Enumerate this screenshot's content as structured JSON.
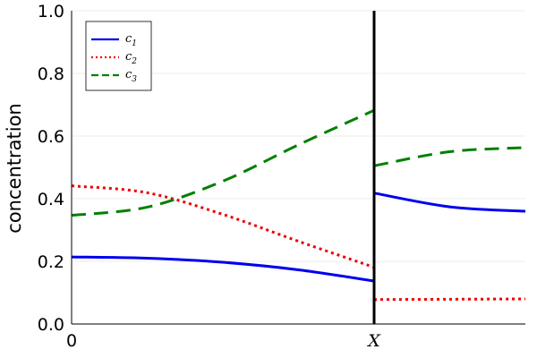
{
  "chart_data": {
    "type": "line",
    "title": "",
    "xlabel": "",
    "ylabel": "concentration",
    "xlim": [
      0,
      1.5
    ],
    "ylim": [
      0,
      1.0
    ],
    "x_ticks": [
      {
        "value": 0,
        "label": "0"
      },
      {
        "value": 1,
        "label": "X"
      }
    ],
    "y_ticks": [
      {
        "value": 0.0,
        "label": "0.0"
      },
      {
        "value": 0.2,
        "label": "0.2"
      },
      {
        "value": 0.4,
        "label": "0.4"
      },
      {
        "value": 0.6,
        "label": "0.6"
      },
      {
        "value": 0.8,
        "label": "0.8"
      },
      {
        "value": 1.0,
        "label": "1.0"
      }
    ],
    "grid": true,
    "legend": "top-left",
    "interface_x": 1,
    "series": [
      {
        "name": "c1",
        "label_main": "c",
        "label_sub": "1",
        "color": "#0000ee",
        "style": "solid",
        "left": {
          "x": [
            0,
            0.25,
            0.5,
            0.75,
            1.0
          ],
          "y": [
            0.214,
            0.21,
            0.197,
            0.173,
            0.137
          ]
        },
        "right": {
          "x": [
            1.0,
            1.25,
            1.5
          ],
          "y": [
            0.418,
            0.374,
            0.36
          ]
        }
      },
      {
        "name": "c2",
        "label_main": "c",
        "label_sub": "2",
        "color": "#ee0000",
        "style": "dotted",
        "left": {
          "x": [
            0,
            0.25,
            0.5,
            0.75,
            1.0
          ],
          "y": [
            0.441,
            0.419,
            0.35,
            0.264,
            0.181
          ]
        },
        "right": {
          "x": [
            1.0,
            1.25,
            1.5
          ],
          "y": [
            0.078,
            0.079,
            0.08
          ]
        }
      },
      {
        "name": "c3",
        "label_main": "c",
        "label_sub": "3",
        "color": "#008000",
        "style": "dashed",
        "left": {
          "x": [
            0,
            0.25,
            0.5,
            0.75,
            1.0
          ],
          "y": [
            0.347,
            0.373,
            0.456,
            0.572,
            0.682
          ]
        },
        "right": {
          "x": [
            1.0,
            1.25,
            1.5
          ],
          "y": [
            0.505,
            0.55,
            0.563
          ]
        }
      }
    ]
  }
}
